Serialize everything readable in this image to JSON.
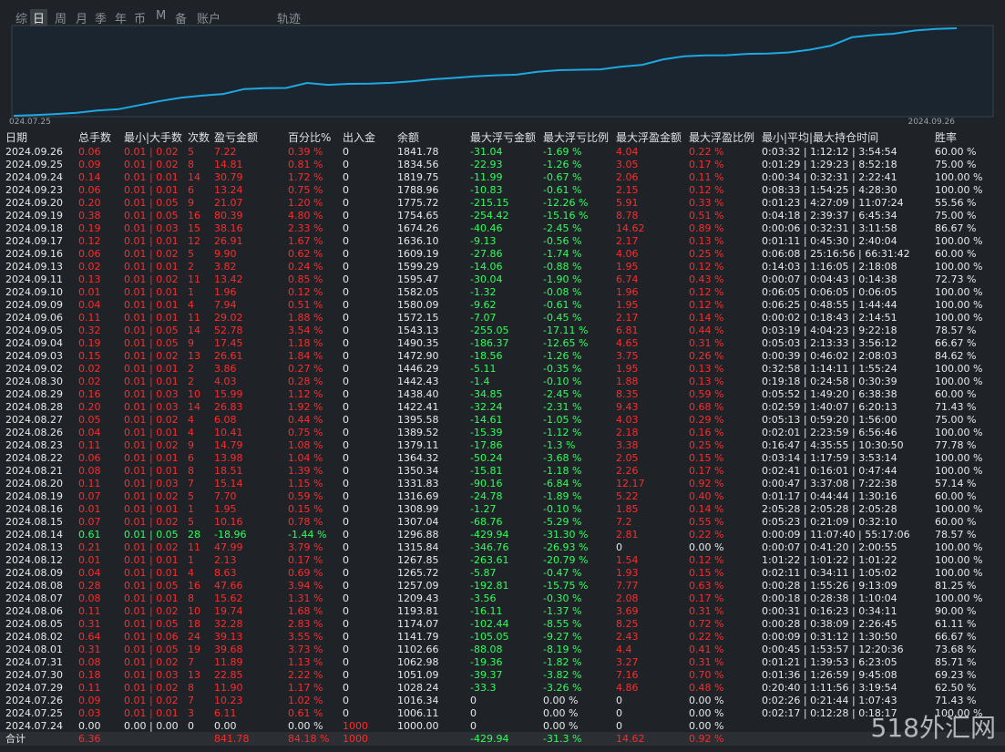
{
  "tabs": [
    "综",
    "日",
    "周",
    "月",
    "季",
    "年",
    "币",
    "M",
    "备",
    "账户",
    "轨迹"
  ],
  "chart": {
    "start_label": "024.07.25",
    "end_label": "2024.09.26"
  },
  "table": {
    "headers": [
      "日期",
      "总手数",
      "最小|大手数",
      "次数",
      "盈亏金额",
      "百分比%",
      "出入金",
      "余额",
      "最大浮亏金额",
      "最大浮亏比例",
      "最大浮盈金额",
      "最大浮盈比例",
      "最小|平均|最大持仓时间",
      "胜率"
    ],
    "rows": [
      [
        "2024.09.26",
        "0.06",
        "0.01 | 0.02",
        "5",
        "7.22",
        "0.39 %",
        "0",
        "1841.78",
        "-31.04",
        "-1.69 %",
        "4.04",
        "0.22 %",
        "0:03:32 | 1:12:12 | 3:54:54",
        "60.00 %"
      ],
      [
        "2024.09.25",
        "0.09",
        "0.01 | 0.02",
        "8",
        "14.81",
        "0.81 %",
        "0",
        "1834.56",
        "-22.93",
        "-1.26 %",
        "3.05",
        "0.17 %",
        "0:01:29 | 1:29:23 | 8:52:18",
        "75.00 %"
      ],
      [
        "2024.09.24",
        "0.14",
        "0.01 | 0.01",
        "14",
        "30.79",
        "1.72 %",
        "0",
        "1819.75",
        "-11.99",
        "-0.67 %",
        "2.06",
        "0.11 %",
        "0:00:34 | 0:32:31 | 2:22:41",
        "100.00 %"
      ],
      [
        "2024.09.23",
        "0.06",
        "0.01 | 0.01",
        "6",
        "13.24",
        "0.75 %",
        "0",
        "1788.96",
        "-10.83",
        "-0.61 %",
        "2.15",
        "0.12 %",
        "0:08:33 | 1:54:25 | 4:28:30",
        "100.00 %"
      ],
      [
        "2024.09.20",
        "0.20",
        "0.01 | 0.05",
        "9",
        "21.07",
        "1.20 %",
        "0",
        "1775.72",
        "-215.15",
        "-12.26 %",
        "5.91",
        "0.33 %",
        "0:01:23 | 4:27:09 | 11:07:24",
        "55.56 %"
      ],
      [
        "2024.09.19",
        "0.38",
        "0.01 | 0.05",
        "16",
        "80.39",
        "4.80 %",
        "0",
        "1754.65",
        "-254.42",
        "-15.16 %",
        "8.78",
        "0.51 %",
        "0:04:18 | 2:39:37 | 6:45:34",
        "75.00 %"
      ],
      [
        "2024.09.18",
        "0.19",
        "0.01 | 0.03",
        "15",
        "38.16",
        "2.33 %",
        "0",
        "1674.26",
        "-40.46",
        "-2.45 %",
        "14.62",
        "0.89 %",
        "0:00:06 | 0:32:31 | 3:11:58",
        "86.67 %"
      ],
      [
        "2024.09.17",
        "0.12",
        "0.01 | 0.01",
        "12",
        "26.91",
        "1.67 %",
        "0",
        "1636.10",
        "-9.13",
        "-0.56 %",
        "2.17",
        "0.13 %",
        "0:01:11 | 0:45:30 | 2:40:04",
        "100.00 %"
      ],
      [
        "2024.09.16",
        "0.06",
        "0.01 | 0.02",
        "5",
        "9.90",
        "0.62 %",
        "0",
        "1609.19",
        "-27.86",
        "-1.74 %",
        "4.06",
        "0.25 %",
        "0:06:08 | 25:16:56 | 66:31:42",
        "60.00 %"
      ],
      [
        "2024.09.13",
        "0.02",
        "0.01 | 0.01",
        "2",
        "3.82",
        "0.24 %",
        "0",
        "1599.29",
        "-14.06",
        "-0.88 %",
        "1.95",
        "0.12 %",
        "0:14:03 | 1:16:05 | 2:18:08",
        "100.00 %"
      ],
      [
        "2024.09.11",
        "0.13",
        "0.01 | 0.02",
        "11",
        "13.42",
        "0.85 %",
        "0",
        "1595.47",
        "-30.04",
        "-1.90 %",
        "6.74",
        "0.43 %",
        "0:00:07 | 0:04:43 | 0:14:38",
        "72.73 %"
      ],
      [
        "2024.09.10",
        "0.01",
        "0.01 | 0.01",
        "1",
        "1.96",
        "0.12 %",
        "0",
        "1582.05",
        "-1.32",
        "-0.08 %",
        "1.96",
        "0.12 %",
        "0:06:05 | 0:06:05 | 0:06:05",
        "100.00 %"
      ],
      [
        "2024.09.09",
        "0.04",
        "0.01 | 0.01",
        "4",
        "7.94",
        "0.51 %",
        "0",
        "1580.09",
        "-9.62",
        "-0.61 %",
        "1.95",
        "0.12 %",
        "0:06:25 | 0:48:55 | 1:44:44",
        "100.00 %"
      ],
      [
        "2024.09.06",
        "0.11",
        "0.01 | 0.01",
        "11",
        "29.02",
        "1.88 %",
        "0",
        "1572.15",
        "-7.07",
        "-0.45 %",
        "2.17",
        "0.14 %",
        "0:00:02 | 0:18:43 | 2:14:51",
        "100.00 %"
      ],
      [
        "2024.09.05",
        "0.32",
        "0.01 | 0.05",
        "14",
        "52.78",
        "3.54 %",
        "0",
        "1543.13",
        "-255.05",
        "-17.11 %",
        "6.81",
        "0.44 %",
        "0:03:19 | 4:04:23 | 9:22:18",
        "78.57 %"
      ],
      [
        "2024.09.04",
        "0.19",
        "0.01 | 0.05",
        "9",
        "17.45",
        "1.18 %",
        "0",
        "1490.35",
        "-186.37",
        "-12.65 %",
        "4.65",
        "0.31 %",
        "0:05:03 | 2:13:33 | 3:56:12",
        "66.67 %"
      ],
      [
        "2024.09.03",
        "0.15",
        "0.01 | 0.02",
        "13",
        "26.61",
        "1.84 %",
        "0",
        "1472.90",
        "-18.56",
        "-1.26 %",
        "3.75",
        "0.26 %",
        "0:00:39 | 0:46:02 | 2:08:03",
        "84.62 %"
      ],
      [
        "2024.09.02",
        "0.02",
        "0.01 | 0.01",
        "2",
        "3.86",
        "0.27 %",
        "0",
        "1446.29",
        "-5.11",
        "-0.35 %",
        "1.95",
        "0.13 %",
        "0:32:58 | 1:14:11 | 1:55:24",
        "100.00 %"
      ],
      [
        "2024.08.30",
        "0.02",
        "0.01 | 0.01",
        "2",
        "4.03",
        "0.28 %",
        "0",
        "1442.43",
        "-1.4",
        "-0.10 %",
        "1.88",
        "0.13 %",
        "0:19:18 | 0:24:58 | 0:30:39",
        "100.00 %"
      ],
      [
        "2024.08.29",
        "0.16",
        "0.01 | 0.03",
        "10",
        "15.99",
        "1.12 %",
        "0",
        "1438.40",
        "-34.85",
        "-2.45 %",
        "8.35",
        "0.59 %",
        "0:05:52 | 1:49:20 | 6:38:38",
        "60.00 %"
      ],
      [
        "2024.08.28",
        "0.20",
        "0.01 | 0.03",
        "14",
        "26.83",
        "1.92 %",
        "0",
        "1422.41",
        "-32.24",
        "-2.31 %",
        "9.43",
        "0.68 %",
        "0:02:59 | 1:40:07 | 6:20:13",
        "71.43 %"
      ],
      [
        "2024.08.27",
        "0.05",
        "0.01 | 0.02",
        "4",
        "6.08",
        "0.44 %",
        "0",
        "1395.58",
        "-14.61",
        "-1.05 %",
        "4.03",
        "0.29 %",
        "0:05:13 | 0:59:20 | 1:56:00",
        "75.00 %"
      ],
      [
        "2024.08.26",
        "0.04",
        "0.01 | 0.01",
        "4",
        "10.41",
        "0.75 %",
        "0",
        "1389.52",
        "-15.39",
        "-1.12 %",
        "2.18",
        "0.16 %",
        "0:02:01 | 2:23:59 | 6:56:46",
        "100.00 %"
      ],
      [
        "2024.08.23",
        "0.11",
        "0.01 | 0.02",
        "9",
        "14.79",
        "1.08 %",
        "0",
        "1379.11",
        "-17.86",
        "-1.3 %",
        "3.38",
        "0.25 %",
        "0:16:47 | 4:35:55 | 10:30:50",
        "77.78 %"
      ],
      [
        "2024.08.22",
        "0.06",
        "0.01 | 0.01",
        "6",
        "13.98",
        "1.04 %",
        "0",
        "1364.32",
        "-50.24",
        "-3.68 %",
        "2.05",
        "0.15 %",
        "0:03:14 | 1:17:59 | 3:53:14",
        "100.00 %"
      ],
      [
        "2024.08.21",
        "0.08",
        "0.01 | 0.01",
        "8",
        "18.51",
        "1.39 %",
        "0",
        "1350.34",
        "-15.81",
        "-1.18 %",
        "2.26",
        "0.17 %",
        "0:02:41 | 0:16:01 | 0:47:44",
        "100.00 %"
      ],
      [
        "2024.08.20",
        "0.11",
        "0.01 | 0.03",
        "7",
        "15.14",
        "1.15 %",
        "0",
        "1331.83",
        "-90.16",
        "-6.84 %",
        "12.17",
        "0.92 %",
        "0:00:47 | 3:37:08 | 7:22:38",
        "57.14 %"
      ],
      [
        "2024.08.19",
        "0.07",
        "0.01 | 0.02",
        "5",
        "7.70",
        "0.59 %",
        "0",
        "1316.69",
        "-24.78",
        "-1.89 %",
        "5.22",
        "0.40 %",
        "0:01:17 | 0:44:44 | 1:30:16",
        "60.00 %"
      ],
      [
        "2024.08.16",
        "0.01",
        "0.01 | 0.01",
        "1",
        "1.95",
        "0.15 %",
        "0",
        "1308.99",
        "-1.27",
        "-0.10 %",
        "1.85",
        "0.14 %",
        "2:05:28 | 2:05:28 | 2:05:28",
        "100.00 %"
      ],
      [
        "2024.08.15",
        "0.07",
        "0.01 | 0.02",
        "5",
        "10.16",
        "0.78 %",
        "0",
        "1307.04",
        "-68.76",
        "-5.29 %",
        "7.2",
        "0.55 %",
        "0:05:23 | 0:21:09 | 0:32:10",
        "60.00 %"
      ],
      [
        "2024.08.14",
        "0.61",
        "0.01 | 0.05",
        "28",
        "-18.96",
        "-1.44 %",
        "0",
        "1296.88",
        "-429.94",
        "-31.30 %",
        "2.81",
        "0.22 %",
        "0:00:09 | 11:07:40 | 55:17:06",
        "78.57 %"
      ],
      [
        "2024.08.13",
        "0.21",
        "0.01 | 0.02",
        "11",
        "47.99",
        "3.79 %",
        "0",
        "1315.84",
        "-346.76",
        "-26.93 %",
        "0",
        "0.00 %",
        "0:00:07 | 0:41:20 | 2:00:55",
        "100.00 %"
      ],
      [
        "2024.08.12",
        "0.01",
        "0.01 | 0.01",
        "1",
        "2.13",
        "0.17 %",
        "0",
        "1267.85",
        "-263.61",
        "-20.79 %",
        "1.54",
        "0.12 %",
        "1:01:22 | 1:01:22 | 1:01:22",
        "100.00 %"
      ],
      [
        "2024.08.09",
        "0.04",
        "0.01 | 0.01",
        "4",
        "8.63",
        "0.69 %",
        "0",
        "1265.72",
        "-5.87",
        "-0.47 %",
        "1.93",
        "0.15 %",
        "0:02:11 | 0:34:11 | 1:05:02",
        "100.00 %"
      ],
      [
        "2024.08.08",
        "0.28",
        "0.01 | 0.05",
        "16",
        "47.66",
        "3.94 %",
        "0",
        "1257.09",
        "-192.81",
        "-15.75 %",
        "7.77",
        "0.63 %",
        "0:00:28 | 1:55:26 | 9:13:09",
        "81.25 %"
      ],
      [
        "2024.08.07",
        "0.08",
        "0.01 | 0.01",
        "8",
        "15.62",
        "1.31 %",
        "0",
        "1209.43",
        "-3.56",
        "-0.30 %",
        "2.08",
        "0.17 %",
        "0:00:18 | 0:28:38 | 1:10:04",
        "100.00 %"
      ],
      [
        "2024.08.06",
        "0.11",
        "0.01 | 0.02",
        "10",
        "19.74",
        "1.68 %",
        "0",
        "1193.81",
        "-16.11",
        "-1.37 %",
        "3.69",
        "0.31 %",
        "0:00:31 | 0:16:23 | 0:34:11",
        "90.00 %"
      ],
      [
        "2024.08.05",
        "0.31",
        "0.01 | 0.05",
        "18",
        "32.28",
        "2.83 %",
        "0",
        "1174.07",
        "-102.44",
        "-8.55 %",
        "8.25",
        "0.72 %",
        "0:00:28 | 0:38:09 | 2:26:45",
        "61.11 %"
      ],
      [
        "2024.08.02",
        "0.64",
        "0.01 | 0.06",
        "24",
        "39.13",
        "3.55 %",
        "0",
        "1141.79",
        "-105.05",
        "-9.27 %",
        "2.43",
        "0.22 %",
        "0:00:09 | 0:31:12 | 1:30:50",
        "66.67 %"
      ],
      [
        "2024.08.01",
        "0.31",
        "0.01 | 0.05",
        "19",
        "39.68",
        "3.73 %",
        "0",
        "1102.66",
        "-88.08",
        "-8.19 %",
        "4.4",
        "0.41 %",
        "0:00:45 | 1:53:57 | 12:20:36",
        "73.68 %"
      ],
      [
        "2024.07.31",
        "0.08",
        "0.01 | 0.02",
        "7",
        "11.89",
        "1.13 %",
        "0",
        "1062.98",
        "-19.36",
        "-1.82 %",
        "3.27",
        "0.31 %",
        "0:01:21 | 1:39:53 | 6:23:05",
        "85.71 %"
      ],
      [
        "2024.07.30",
        "0.18",
        "0.01 | 0.03",
        "13",
        "22.85",
        "2.22 %",
        "0",
        "1051.09",
        "-39.37",
        "-3.82 %",
        "7.16",
        "0.70 %",
        "0:01:36 | 1:26:59 | 9:45:08",
        "69.23 %"
      ],
      [
        "2024.07.29",
        "0.11",
        "0.01 | 0.02",
        "8",
        "11.90",
        "1.17 %",
        "0",
        "1028.24",
        "-33.3",
        "-3.26 %",
        "4.86",
        "0.48 %",
        "0:20:40 | 1:11:56 | 3:19:54",
        "62.50 %"
      ],
      [
        "2024.07.26",
        "0.09",
        "0.01 | 0.02",
        "7",
        "10.23",
        "1.02 %",
        "0",
        "1016.34",
        "0",
        "0.00 %",
        "0",
        "0.00 %",
        "0:02:26 | 0:21:44 | 1:07:43",
        "71.43 %"
      ],
      [
        "2024.07.25",
        "0.03",
        "0.01 | 0.01",
        "3",
        "6.11",
        "0.61 %",
        "0",
        "1006.11",
        "0",
        "0.00 %",
        "0",
        "0.00 %",
        "0:02:17 | 0:12:28 | 0:18:17",
        "100.00 %"
      ],
      [
        "2024.07.24",
        "0.00",
        "0.00 | 0.00",
        "0",
        "0.00",
        "0.00 %",
        "1000",
        "1000.00",
        "0",
        "0.00 %",
        "0",
        "0.00 %",
        null,
        null
      ]
    ],
    "total": [
      "合计",
      "6.36",
      null,
      null,
      "841.78",
      "84.18 %",
      "1000",
      null,
      "-429.94",
      "-31.3 %",
      "14.62",
      "0.92 %",
      null,
      null
    ]
  },
  "watermark": "518外汇网"
}
